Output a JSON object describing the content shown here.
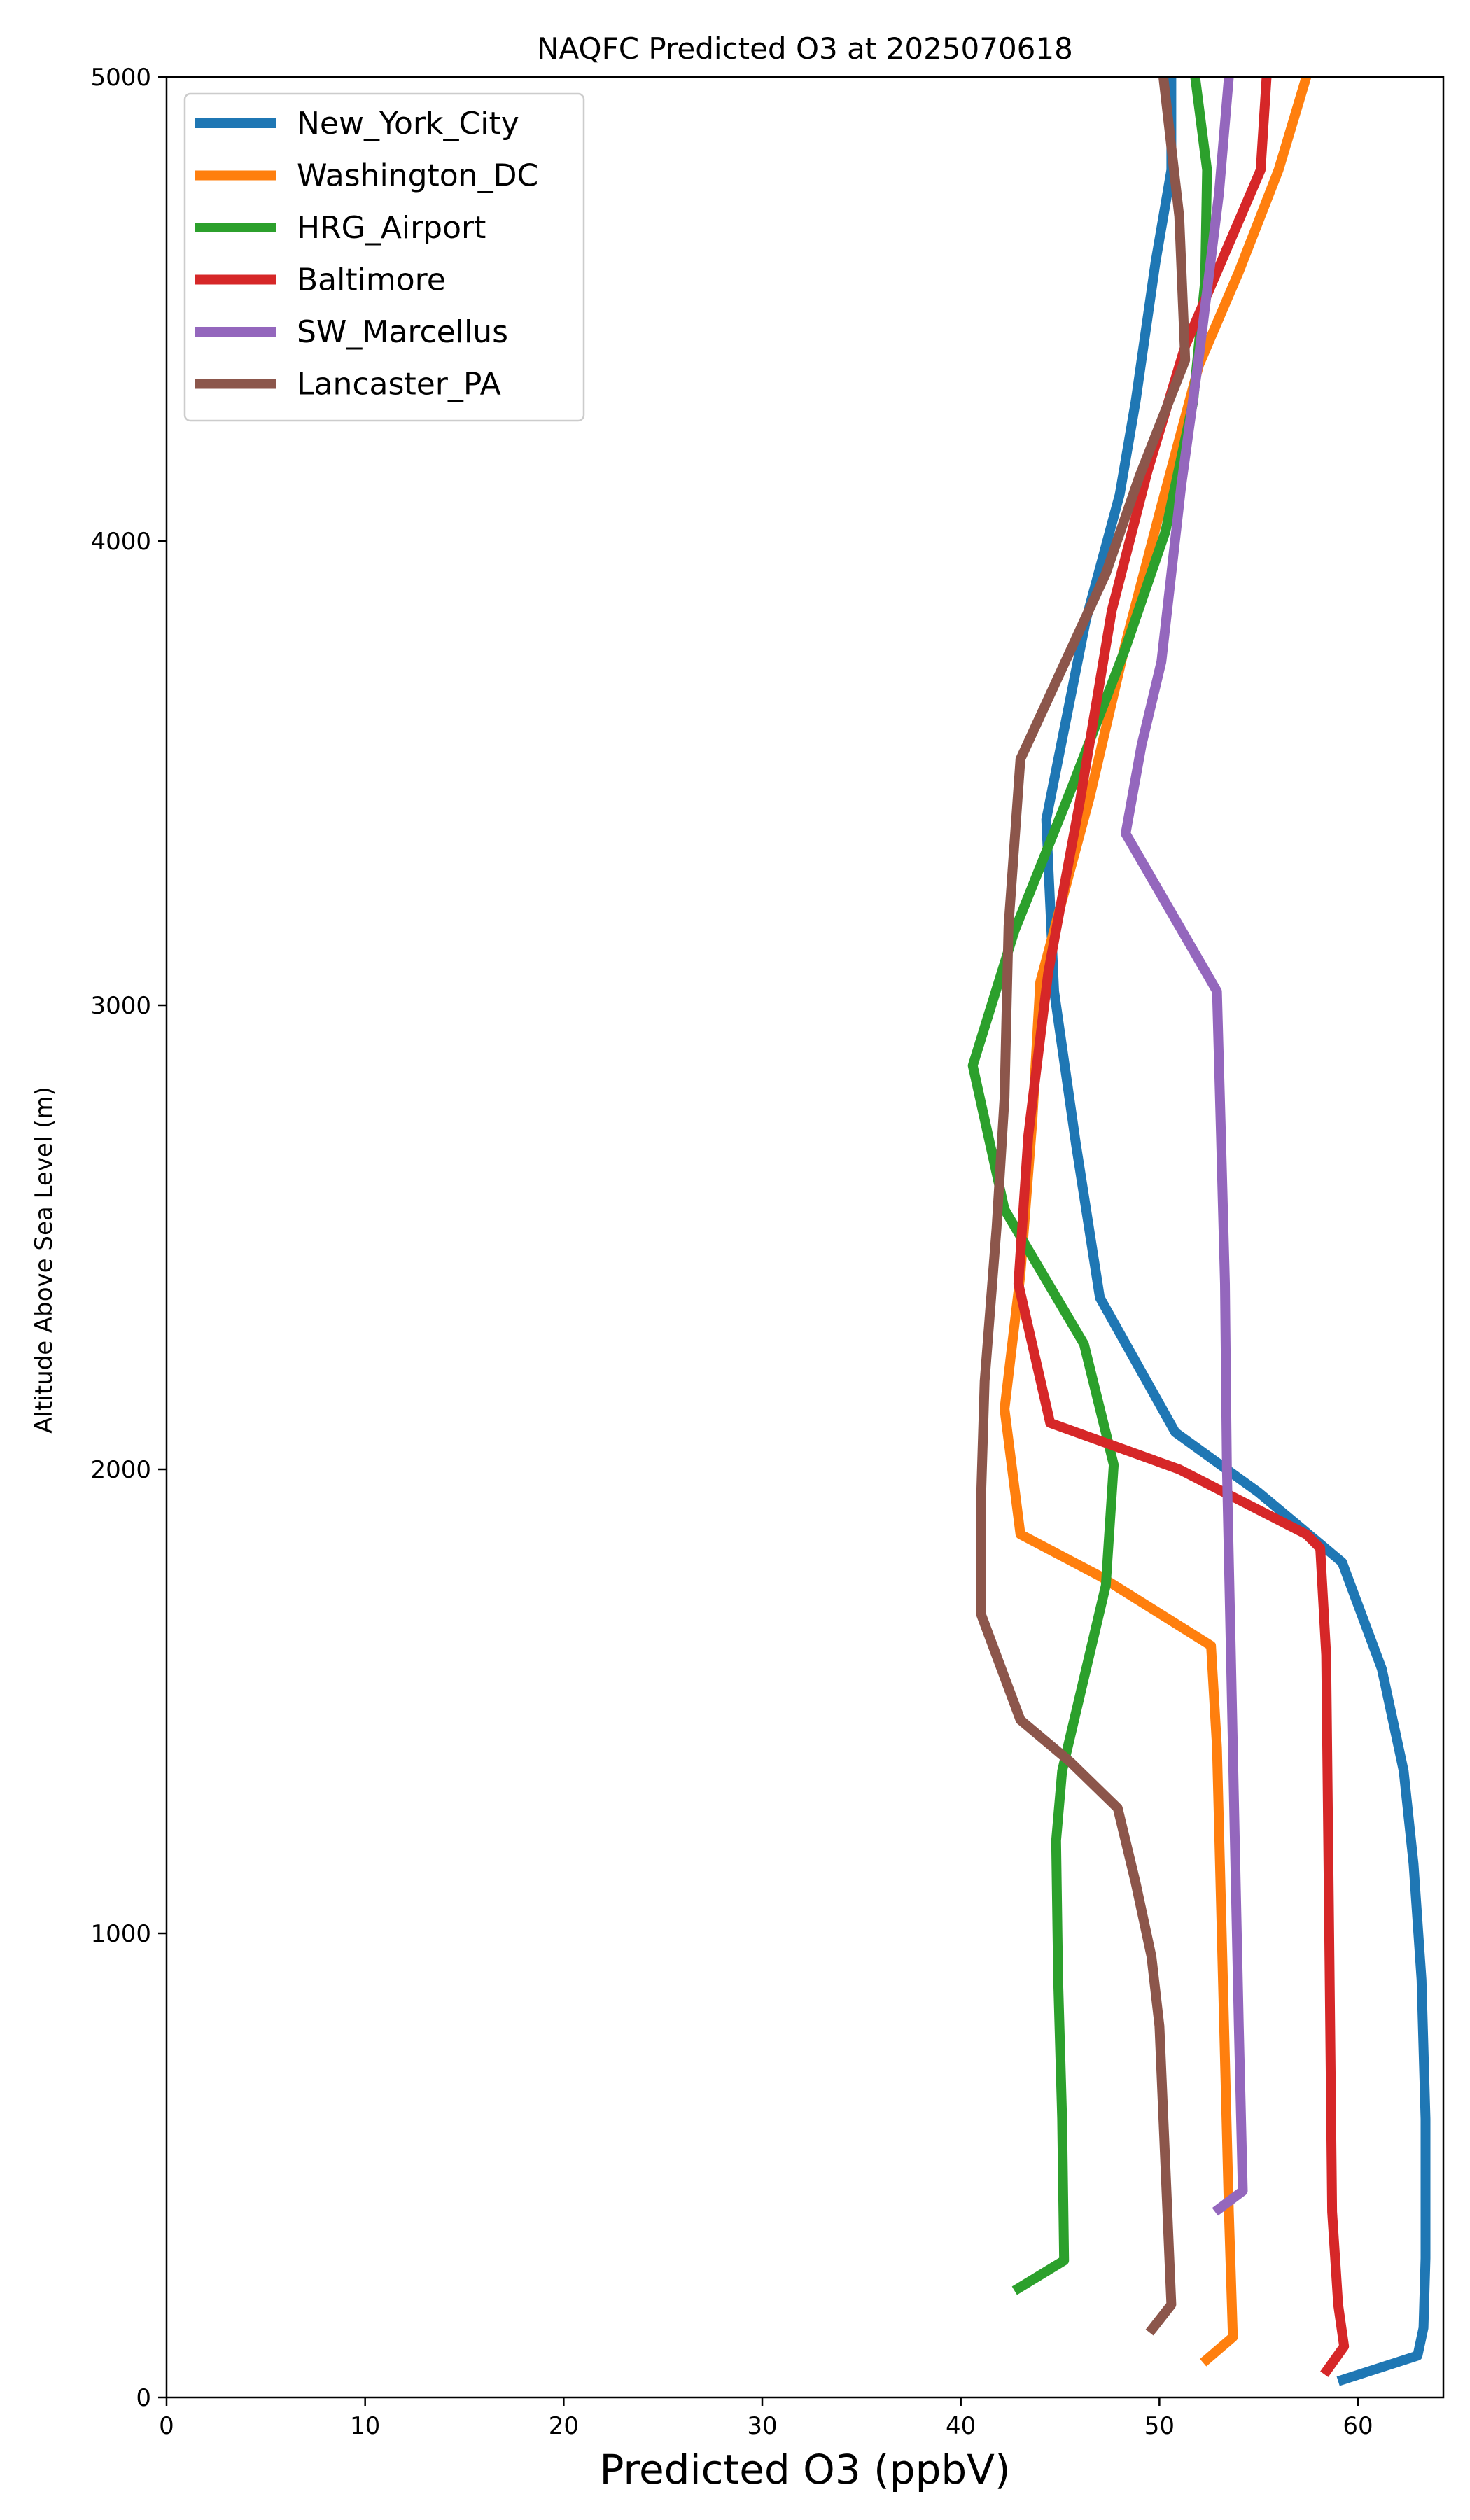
{
  "chart_data": {
    "type": "line",
    "title": "NAQFC Predicted O3 at 2025070618",
    "xlabel": "Predicted O3 (ppbV)",
    "ylabel": "Altitude Above Sea Level (m)",
    "xlim": [
      0,
      64.3
    ],
    "ylim": [
      0,
      5000
    ],
    "xticks": [
      0,
      10,
      20,
      30,
      40,
      50,
      60
    ],
    "yticks": [
      0,
      1000,
      2000,
      3000,
      4000,
      5000
    ],
    "xtick_labels": [
      "0",
      "10",
      "20",
      "30",
      "40",
      "50",
      "60"
    ],
    "ytick_labels": [
      "0",
      "1000",
      "2000",
      "3000",
      "4000",
      "5000"
    ],
    "grid": false,
    "legend_position": "upper-left",
    "series": [
      {
        "name": "New_York_City",
        "color": "#1f77b4",
        "points": [
          [
            59.0,
            35
          ],
          [
            63.0,
            90
          ],
          [
            63.3,
            150
          ],
          [
            63.4,
            300
          ],
          [
            63.4,
            600
          ],
          [
            63.2,
            900
          ],
          [
            62.8,
            1150
          ],
          [
            62.3,
            1350
          ],
          [
            61.2,
            1570
          ],
          [
            59.2,
            1800
          ],
          [
            55.0,
            1950
          ],
          [
            50.8,
            2080
          ],
          [
            47.0,
            2370
          ],
          [
            45.8,
            2700
          ],
          [
            44.7,
            3030
          ],
          [
            44.3,
            3400
          ],
          [
            46.3,
            3830
          ],
          [
            48.0,
            4100
          ],
          [
            48.8,
            4300
          ],
          [
            49.8,
            4600
          ],
          [
            50.6,
            4800
          ],
          [
            50.6,
            5000
          ]
        ]
      },
      {
        "name": "Washington_DC",
        "color": "#ff7f0e",
        "points": [
          [
            52.2,
            75
          ],
          [
            53.7,
            130
          ],
          [
            53.5,
            400
          ],
          [
            53.2,
            900
          ],
          [
            52.9,
            1400
          ],
          [
            52.6,
            1620
          ],
          [
            47.0,
            1770
          ],
          [
            43.0,
            1860
          ],
          [
            42.2,
            2130
          ],
          [
            43.0,
            2420
          ],
          [
            43.6,
            2750
          ],
          [
            44.0,
            3050
          ],
          [
            46.5,
            3450
          ],
          [
            48.3,
            3780
          ],
          [
            50.0,
            4060
          ],
          [
            52.0,
            4380
          ],
          [
            54.0,
            4580
          ],
          [
            56.0,
            4800
          ],
          [
            57.4,
            5000
          ]
        ]
      },
      {
        "name": "HRG_Airport",
        "color": "#2ca02c",
        "points": [
          [
            42.7,
            230
          ],
          [
            45.2,
            295
          ],
          [
            45.1,
            600
          ],
          [
            44.9,
            900
          ],
          [
            44.8,
            1200
          ],
          [
            45.1,
            1350
          ],
          [
            46.2,
            1550
          ],
          [
            47.3,
            1750
          ],
          [
            47.7,
            2010
          ],
          [
            46.2,
            2270
          ],
          [
            42.2,
            2560
          ],
          [
            40.6,
            2870
          ],
          [
            42.7,
            3160
          ],
          [
            45.6,
            3470
          ],
          [
            48.3,
            3770
          ],
          [
            50.3,
            4020
          ],
          [
            51.7,
            4300
          ],
          [
            52.3,
            4560
          ],
          [
            52.4,
            4800
          ],
          [
            51.8,
            5000
          ]
        ]
      },
      {
        "name": "Baltimore",
        "color": "#d62728",
        "points": [
          [
            58.3,
            50
          ],
          [
            59.3,
            110
          ],
          [
            59.0,
            200
          ],
          [
            58.7,
            400
          ],
          [
            58.6,
            800
          ],
          [
            58.5,
            1200
          ],
          [
            58.4,
            1600
          ],
          [
            58.1,
            1830
          ],
          [
            57.4,
            1860
          ],
          [
            51.0,
            2000
          ],
          [
            44.5,
            2100
          ],
          [
            42.9,
            2400
          ],
          [
            43.4,
            2720
          ],
          [
            44.4,
            3070
          ],
          [
            46.0,
            3440
          ],
          [
            47.6,
            3850
          ],
          [
            49.4,
            4150
          ],
          [
            51.3,
            4420
          ],
          [
            55.1,
            4800
          ],
          [
            55.4,
            5000
          ]
        ]
      },
      {
        "name": "SW_Marcellus",
        "color": "#9467bd",
        "points": [
          [
            52.8,
            400
          ],
          [
            54.2,
            445
          ],
          [
            54.0,
            800
          ],
          [
            53.8,
            1200
          ],
          [
            53.6,
            1600
          ],
          [
            53.4,
            2000
          ],
          [
            53.3,
            2400
          ],
          [
            53.1,
            2720
          ],
          [
            52.9,
            3030
          ],
          [
            48.3,
            3370
          ],
          [
            49.1,
            3560
          ],
          [
            50.1,
            3740
          ],
          [
            51.1,
            4120
          ],
          [
            52.0,
            4400
          ],
          [
            53.0,
            4750
          ],
          [
            53.5,
            5000
          ]
        ]
      },
      {
        "name": "Lancaster_PA",
        "color": "#8c564b",
        "points": [
          [
            49.5,
            140
          ],
          [
            50.6,
            200
          ],
          [
            50.3,
            500
          ],
          [
            50.0,
            800
          ],
          [
            49.6,
            950
          ],
          [
            48.8,
            1110
          ],
          [
            47.9,
            1270
          ],
          [
            45.5,
            1370
          ],
          [
            43.0,
            1460
          ],
          [
            41.0,
            1690
          ],
          [
            41.0,
            1910
          ],
          [
            41.2,
            2190
          ],
          [
            41.8,
            2520
          ],
          [
            42.2,
            2800
          ],
          [
            42.4,
            3170
          ],
          [
            43.0,
            3530
          ],
          [
            47.3,
            3930
          ],
          [
            49.0,
            4140
          ],
          [
            51.3,
            4390
          ],
          [
            51.0,
            4700
          ],
          [
            50.2,
            5000
          ]
        ]
      }
    ]
  }
}
